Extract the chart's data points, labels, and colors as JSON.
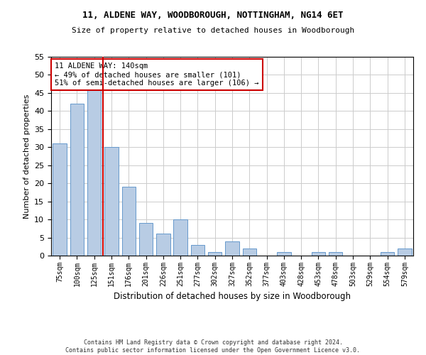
{
  "title1": "11, ALDENE WAY, WOODBOROUGH, NOTTINGHAM, NG14 6ET",
  "title2": "Size of property relative to detached houses in Woodborough",
  "xlabel": "Distribution of detached houses by size in Woodborough",
  "ylabel": "Number of detached properties",
  "footer1": "Contains HM Land Registry data © Crown copyright and database right 2024.",
  "footer2": "Contains public sector information licensed under the Open Government Licence v3.0.",
  "annotation_line1": "11 ALDENE WAY: 140sqm",
  "annotation_line2": "← 49% of detached houses are smaller (101)",
  "annotation_line3": "51% of semi-detached houses are larger (106) →",
  "categories": [
    "75sqm",
    "100sqm",
    "125sqm",
    "151sqm",
    "176sqm",
    "201sqm",
    "226sqm",
    "251sqm",
    "277sqm",
    "302sqm",
    "327sqm",
    "352sqm",
    "377sqm",
    "403sqm",
    "428sqm",
    "453sqm",
    "478sqm",
    "503sqm",
    "529sqm",
    "554sqm",
    "579sqm"
  ],
  "values": [
    31,
    42,
    46,
    30,
    19,
    9,
    6,
    10,
    3,
    1,
    4,
    2,
    0,
    1,
    0,
    1,
    1,
    0,
    0,
    1,
    2
  ],
  "bar_color": "#b8cce4",
  "bar_edge_color": "#6699cc",
  "ref_line_color": "#cc0000",
  "ylim": [
    0,
    55
  ],
  "yticks": [
    0,
    5,
    10,
    15,
    20,
    25,
    30,
    35,
    40,
    45,
    50,
    55
  ],
  "annotation_box_color": "#ffffff",
  "annotation_box_edge": "#cc0000",
  "bg_color": "#ffffff",
  "grid_color": "#cccccc"
}
